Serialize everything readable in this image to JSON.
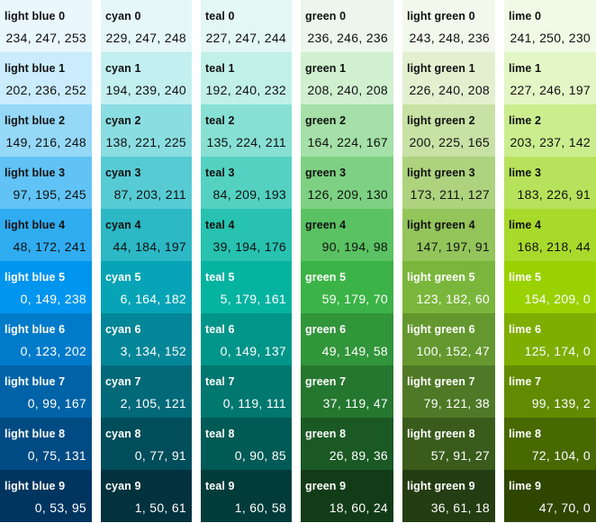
{
  "palettes": [
    {
      "family": "light blue",
      "swatches": [
        {
          "name": "light blue 0",
          "rgb": "234, 247, 253",
          "color": "#eaf7fd"
        },
        {
          "name": "light blue 1",
          "rgb": "202, 236, 252",
          "color": "#caecfc"
        },
        {
          "name": "light blue 2",
          "rgb": "149, 216, 248",
          "color": "#95d8f8"
        },
        {
          "name": "light blue 3",
          "rgb": "97, 195, 245",
          "color": "#61c3f5"
        },
        {
          "name": "light blue 4",
          "rgb": "48, 172, 241",
          "color": "#30acf1"
        },
        {
          "name": "light blue 5",
          "rgb": "0, 149, 238",
          "color": "#0095ee"
        },
        {
          "name": "light blue 6",
          "rgb": "0, 123, 202",
          "color": "#007bca"
        },
        {
          "name": "light blue 7",
          "rgb": "0, 99, 167",
          "color": "#0063a7"
        },
        {
          "name": "light blue 8",
          "rgb": "0, 75, 131",
          "color": "#004b83"
        },
        {
          "name": "light blue 9",
          "rgb": "0, 53, 95",
          "color": "#00355f"
        }
      ]
    },
    {
      "family": "cyan",
      "swatches": [
        {
          "name": "cyan 0",
          "rgb": "229, 247, 248",
          "color": "#e5f7f8"
        },
        {
          "name": "cyan 1",
          "rgb": "194, 239, 240",
          "color": "#c2eff0"
        },
        {
          "name": "cyan 2",
          "rgb": "138, 221, 225",
          "color": "#8adde1"
        },
        {
          "name": "cyan 3",
          "rgb": "87, 203, 211",
          "color": "#57cbd3"
        },
        {
          "name": "cyan 4",
          "rgb": "44, 184, 197",
          "color": "#2cb8c5"
        },
        {
          "name": "cyan 5",
          "rgb": "6, 164, 182",
          "color": "#06a4b6"
        },
        {
          "name": "cyan 6",
          "rgb": "3, 134, 152",
          "color": "#038698"
        },
        {
          "name": "cyan 7",
          "rgb": "2, 105, 121",
          "color": "#026979"
        },
        {
          "name": "cyan 8",
          "rgb": "0, 77, 91",
          "color": "#004d5b"
        },
        {
          "name": "cyan 9",
          "rgb": "1, 50, 61",
          "color": "#01323d"
        }
      ]
    },
    {
      "family": "teal",
      "swatches": [
        {
          "name": "teal 0",
          "rgb": "227, 247, 244",
          "color": "#e3f7f4"
        },
        {
          "name": "teal 1",
          "rgb": "192, 240, 232",
          "color": "#c0f0e8"
        },
        {
          "name": "teal 2",
          "rgb": "135, 224, 211",
          "color": "#87e0d3"
        },
        {
          "name": "teal 3",
          "rgb": "84, 209, 193",
          "color": "#54d1c1"
        },
        {
          "name": "teal 4",
          "rgb": "39, 194, 176",
          "color": "#27c2b0"
        },
        {
          "name": "teal 5",
          "rgb": "5, 179, 161",
          "color": "#05b3a1"
        },
        {
          "name": "teal 6",
          "rgb": "0, 149, 137",
          "color": "#009589"
        },
        {
          "name": "teal 7",
          "rgb": "0, 119, 111",
          "color": "#00776f"
        },
        {
          "name": "teal 8",
          "rgb": "0, 90, 85",
          "color": "#005a55"
        },
        {
          "name": "teal 9",
          "rgb": "1, 60, 58",
          "color": "#013c3a"
        }
      ]
    },
    {
      "family": "green",
      "swatches": [
        {
          "name": "green 0",
          "rgb": "236, 246, 236",
          "color": "#ecf6ec"
        },
        {
          "name": "green 1",
          "rgb": "208, 240, 208",
          "color": "#d0f0d0"
        },
        {
          "name": "green 2",
          "rgb": "164, 224, 167",
          "color": "#a4e0a7"
        },
        {
          "name": "green 3",
          "rgb": "126, 209, 130",
          "color": "#7ed182"
        },
        {
          "name": "green 4",
          "rgb": "90, 194, 98",
          "color": "#5ac262"
        },
        {
          "name": "green 5",
          "rgb": "59, 179, 70",
          "color": "#3bb346"
        },
        {
          "name": "green 6",
          "rgb": "49, 149, 58",
          "color": "#31953a"
        },
        {
          "name": "green 7",
          "rgb": "37, 119, 47",
          "color": "#25772f"
        },
        {
          "name": "green 8",
          "rgb": "26, 89, 36",
          "color": "#1a5924"
        },
        {
          "name": "green 9",
          "rgb": "18, 60, 24",
          "color": "#123c18"
        }
      ]
    },
    {
      "family": "light green",
      "swatches": [
        {
          "name": "light green 0",
          "rgb": "243, 248, 236",
          "color": "#f3f8ec"
        },
        {
          "name": "light green 1",
          "rgb": "226, 240, 208",
          "color": "#e2f0d0"
        },
        {
          "name": "light green 2",
          "rgb": "200, 225, 165",
          "color": "#c8e1a5"
        },
        {
          "name": "light green 3",
          "rgb": "173, 211, 127",
          "color": "#add37f"
        },
        {
          "name": "light green 4",
          "rgb": "147, 197, 91",
          "color": "#93c55b"
        },
        {
          "name": "light green 5",
          "rgb": "123, 182, 60",
          "color": "#7bb63c"
        },
        {
          "name": "light green 6",
          "rgb": "100, 152, 47",
          "color": "#64982f"
        },
        {
          "name": "light green 7",
          "rgb": "79, 121, 38",
          "color": "#4f7926"
        },
        {
          "name": "light green 8",
          "rgb": "57, 91, 27",
          "color": "#395b1b"
        },
        {
          "name": "light green 9",
          "rgb": "36, 61, 18",
          "color": "#243d12"
        }
      ]
    },
    {
      "family": "lime",
      "swatches": [
        {
          "name": "lime 0",
          "rgb": "241, 250, 230",
          "color": "#f1fae6"
        },
        {
          "name": "lime 1",
          "rgb": "227, 246, 197",
          "color": "#e3f6c5"
        },
        {
          "name": "lime 2",
          "rgb": "203, 237, 142",
          "color": "#cbed8e"
        },
        {
          "name": "lime 3",
          "rgb": "183, 226, 91",
          "color": "#b7e25b"
        },
        {
          "name": "lime 4",
          "rgb": "168, 218, 44",
          "color": "#a8da2c"
        },
        {
          "name": "lime 5",
          "rgb": "154, 209, 0",
          "color": "#9ad100"
        },
        {
          "name": "lime 6",
          "rgb": "125, 174, 0",
          "color": "#7dae00"
        },
        {
          "name": "lime 7",
          "rgb": "99, 139, 2",
          "color": "#638b02"
        },
        {
          "name": "lime 8",
          "rgb": "72, 104, 0",
          "color": "#486800"
        },
        {
          "name": "lime 9",
          "rgb": "47, 70, 0",
          "color": "#2f4600"
        }
      ]
    }
  ]
}
